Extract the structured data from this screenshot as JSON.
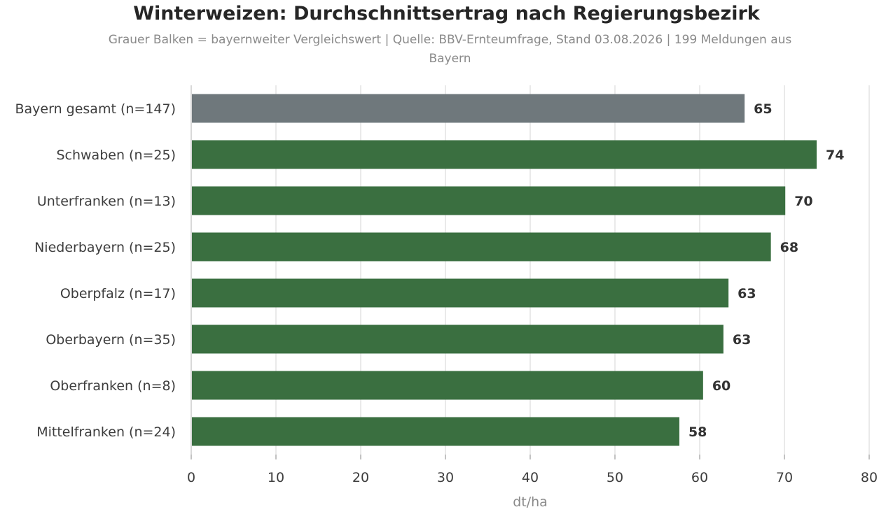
{
  "chart_data": {
    "type": "bar",
    "orientation": "horizontal",
    "title": "Winterweizen: Durchschnittsertrag nach Regierungsbezirk",
    "subtitle": "Grauer Balken = bayernweiter Vergleichswert  |  Quelle: BBV-Ernteumfrage, Stand 03.08.2026  |  199 Meldungen aus Bayern",
    "xlabel": "dt/ha",
    "ylabel": "",
    "xlim": [
      0,
      80
    ],
    "xticks": [
      0,
      10,
      20,
      30,
      40,
      50,
      60,
      70,
      80
    ],
    "grid": "vertical",
    "categories": [
      "Bayern gesamt (n=147)",
      "Schwaben (n=25)",
      "Unterfranken (n=13)",
      "Niederbayern (n=25)",
      "Oberpfalz (n=17)",
      "Oberbayern (n=35)",
      "Oberfranken (n=8)",
      "Mittelfranken (n=24)"
    ],
    "values": [
      65.3,
      73.8,
      70.1,
      68.4,
      63.4,
      62.8,
      60.4,
      57.6
    ],
    "value_labels": [
      "65",
      "74",
      "70",
      "68",
      "63",
      "63",
      "60",
      "58"
    ],
    "colors": {
      "reference": "#6f787c",
      "bar": "#3a6f40",
      "grid": "#e3e3e3",
      "text": "#3d3d3d",
      "value_label": "#333333",
      "axis_label": "#8a8a8a"
    }
  }
}
